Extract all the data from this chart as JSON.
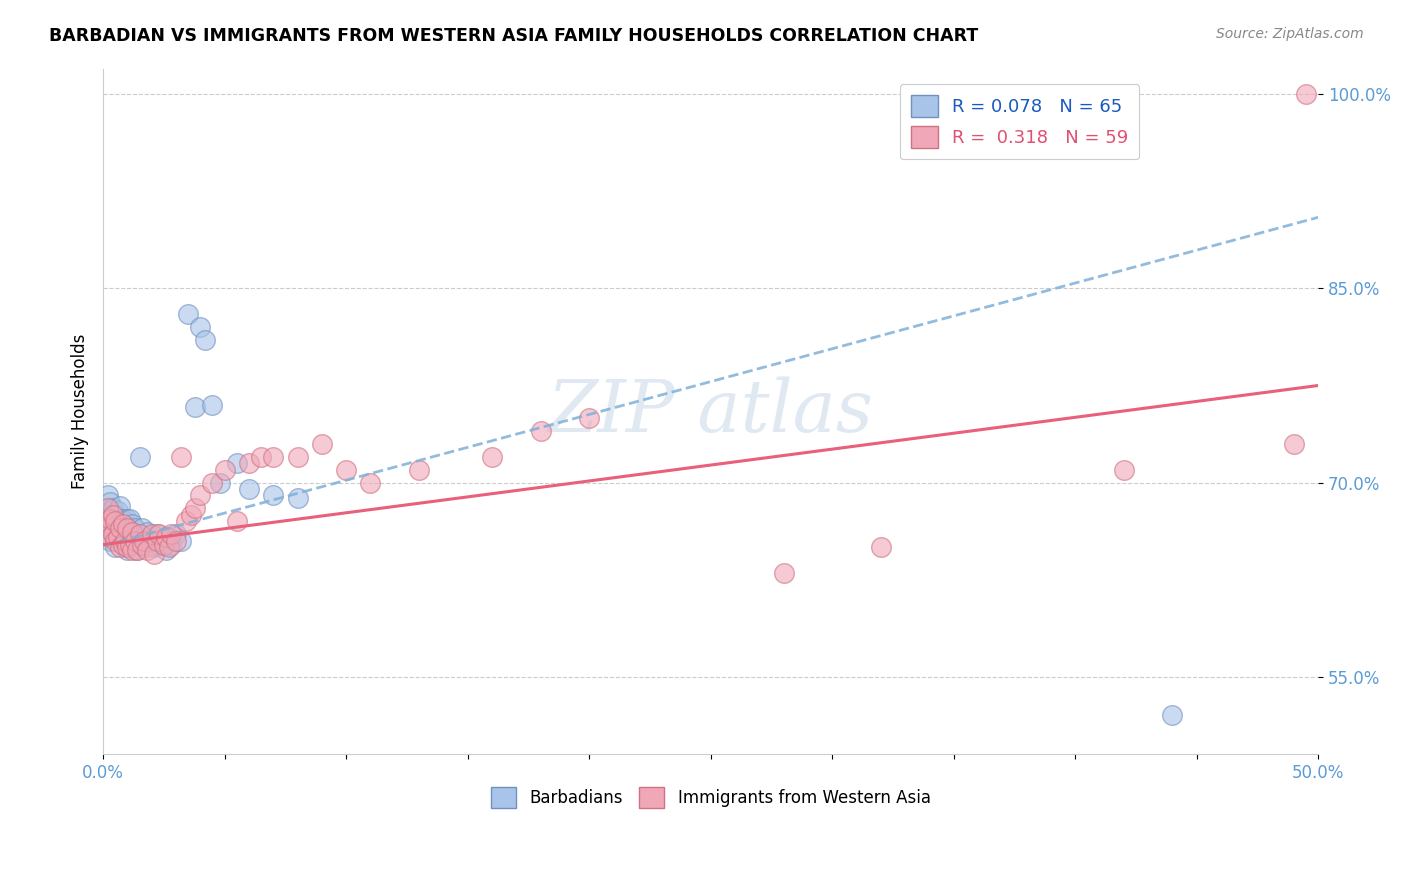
{
  "title": "BARBADIAN VS IMMIGRANTS FROM WESTERN ASIA FAMILY HOUSEHOLDS CORRELATION CHART",
  "source_text": "Source: ZipAtlas.com",
  "ylabel": "Family Households",
  "legend_label_blue": "Barbadians",
  "legend_label_pink": "Immigrants from Western Asia",
  "r_blue": 0.078,
  "n_blue": 65,
  "r_pink": 0.318,
  "n_pink": 59,
  "blue_color": "#a8c4e8",
  "pink_color": "#f0a8b8",
  "line_blue_color": "#7fb0d8",
  "line_pink_color": "#e8607a",
  "watermark_color": "#c8d8e8",
  "xlim": [
    0.0,
    0.5
  ],
  "ylim": [
    0.49,
    1.02
  ],
  "yticks": [
    0.55,
    0.7,
    0.85,
    1.0
  ],
  "ytick_labels": [
    "55.0%",
    "70.0%",
    "85.0%",
    "100.0%"
  ],
  "blue_x": [
    0.001,
    0.001,
    0.001,
    0.002,
    0.002,
    0.002,
    0.003,
    0.003,
    0.003,
    0.004,
    0.004,
    0.004,
    0.005,
    0.005,
    0.005,
    0.005,
    0.006,
    0.006,
    0.006,
    0.007,
    0.007,
    0.007,
    0.008,
    0.008,
    0.009,
    0.009,
    0.01,
    0.01,
    0.01,
    0.011,
    0.011,
    0.012,
    0.012,
    0.013,
    0.013,
    0.014,
    0.015,
    0.015,
    0.016,
    0.016,
    0.017,
    0.018,
    0.018,
    0.019,
    0.02,
    0.021,
    0.022,
    0.023,
    0.025,
    0.026,
    0.027,
    0.028,
    0.03,
    0.032,
    0.035,
    0.038,
    0.04,
    0.042,
    0.045,
    0.048,
    0.055,
    0.06,
    0.07,
    0.08,
    0.44
  ],
  "blue_y": [
    0.67,
    0.68,
    0.66,
    0.665,
    0.675,
    0.69,
    0.655,
    0.67,
    0.685,
    0.66,
    0.67,
    0.68,
    0.65,
    0.66,
    0.668,
    0.675,
    0.658,
    0.668,
    0.678,
    0.655,
    0.665,
    0.682,
    0.66,
    0.672,
    0.658,
    0.67,
    0.648,
    0.66,
    0.672,
    0.65,
    0.672,
    0.655,
    0.668,
    0.652,
    0.665,
    0.648,
    0.658,
    0.72,
    0.652,
    0.665,
    0.655,
    0.65,
    0.662,
    0.655,
    0.655,
    0.65,
    0.66,
    0.652,
    0.652,
    0.648,
    0.658,
    0.652,
    0.66,
    0.655,
    0.83,
    0.758,
    0.82,
    0.81,
    0.76,
    0.7,
    0.715,
    0.695,
    0.69,
    0.688,
    0.52
  ],
  "pink_x": [
    0.001,
    0.002,
    0.002,
    0.003,
    0.003,
    0.004,
    0.004,
    0.005,
    0.005,
    0.006,
    0.007,
    0.007,
    0.008,
    0.008,
    0.009,
    0.01,
    0.01,
    0.011,
    0.012,
    0.012,
    0.013,
    0.014,
    0.015,
    0.016,
    0.017,
    0.018,
    0.02,
    0.021,
    0.022,
    0.023,
    0.025,
    0.026,
    0.027,
    0.028,
    0.03,
    0.032,
    0.034,
    0.036,
    0.038,
    0.04,
    0.045,
    0.05,
    0.055,
    0.06,
    0.065,
    0.07,
    0.08,
    0.09,
    0.1,
    0.11,
    0.13,
    0.16,
    0.18,
    0.2,
    0.28,
    0.32,
    0.42,
    0.49,
    0.495
  ],
  "pink_y": [
    0.67,
    0.665,
    0.68,
    0.658,
    0.672,
    0.66,
    0.675,
    0.655,
    0.67,
    0.658,
    0.65,
    0.665,
    0.652,
    0.668,
    0.655,
    0.65,
    0.665,
    0.652,
    0.648,
    0.662,
    0.655,
    0.648,
    0.66,
    0.652,
    0.655,
    0.648,
    0.66,
    0.645,
    0.655,
    0.66,
    0.652,
    0.658,
    0.65,
    0.66,
    0.655,
    0.72,
    0.67,
    0.675,
    0.68,
    0.69,
    0.7,
    0.71,
    0.67,
    0.715,
    0.72,
    0.72,
    0.72,
    0.73,
    0.71,
    0.7,
    0.71,
    0.72,
    0.74,
    0.75,
    0.63,
    0.65,
    0.71,
    0.73,
    1.0
  ]
}
